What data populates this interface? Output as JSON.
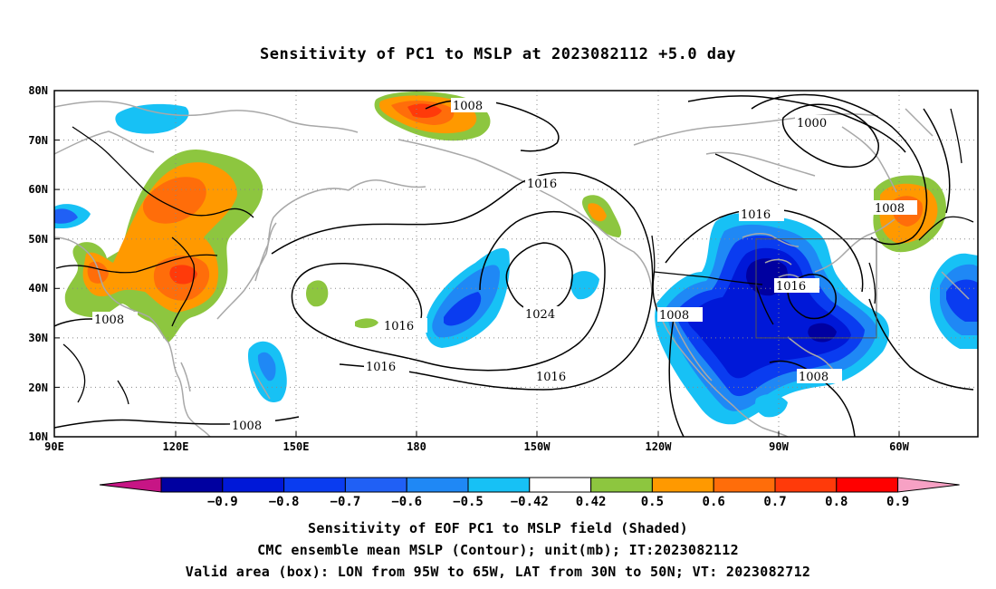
{
  "title": "Sensitivity of PC1 to MSLP at 2023082112 +5.0 day",
  "lat_labels": [
    "80N",
    "70N",
    "60N",
    "50N",
    "40N",
    "30N",
    "20N",
    "10N"
  ],
  "lon_labels": [
    "90E",
    "120E",
    "150E",
    "180",
    "150W",
    "120W",
    "90W",
    "60W"
  ],
  "contour_labels": [
    "1008",
    "1000",
    "1016",
    "1008",
    "1016",
    "1016",
    "1024",
    "1008",
    "1016",
    "1016",
    "1008",
    "1016",
    "1008",
    "1008"
  ],
  "colorbar": {
    "colors": [
      "#c71585",
      "#0000a0",
      "#0018d8",
      "#0a3cf0",
      "#2060f5",
      "#1f88f5",
      "#17c1f5",
      "#ffffff",
      "#8dc63f",
      "#ff9900",
      "#ff6d0a",
      "#ff3a0a",
      "#ff0000",
      "#f7a1c4"
    ],
    "labels": [
      "−0.9",
      "−0.8",
      "−0.7",
      "−0.6",
      "−0.5",
      "−0.42",
      "0.42",
      "0.5",
      "0.6",
      "0.7",
      "0.8",
      "0.9"
    ]
  },
  "captions": {
    "line1": "Sensitivity of EOF PC1 to MSLP field (Shaded)",
    "line2": "CMC ensemble mean MSLP (Contour); unit(mb); IT:2023082112",
    "line3": "Valid area (box): LON from 95W to 65W, LAT from 30N to 50N; VT: 2023082712"
  }
}
